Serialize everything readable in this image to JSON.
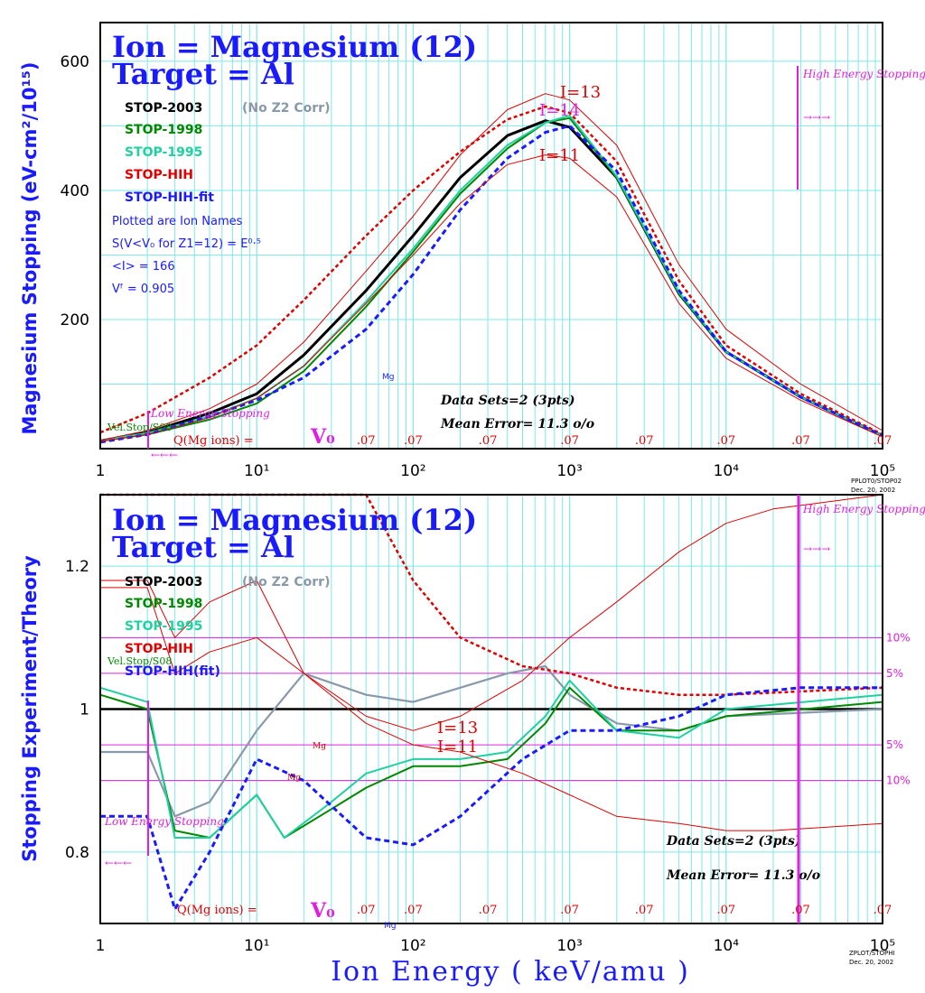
{
  "chart_data": [
    {
      "type": "line",
      "title": "Ion = Magnesium (12)",
      "subtitle": "Target = Al",
      "ylabel": "Magnesium Stopping (eV-cm²/10¹⁵)",
      "xlabel": "Ion Energy ( keV/amu )",
      "xscale": "log",
      "xlim": [
        1,
        100000
      ],
      "ylim": [
        0,
        660
      ],
      "yticks": [
        200,
        400,
        600
      ],
      "xtick_labels": [
        "1",
        "10¹",
        "10²",
        "10³",
        "10⁴",
        "10⁵"
      ],
      "legend": [
        {
          "label": "STOP-2003",
          "note": "(No Z2 Corr)",
          "color": "#000000"
        },
        {
          "label": "STOP-1998",
          "color": "#008800"
        },
        {
          "label": "STOP-1995",
          "color": "#20d0a0"
        },
        {
          "label": "STOP-HIH",
          "color": "#e00000"
        },
        {
          "label": "STOP-HIH-fit",
          "color": "#1a1aff"
        }
      ],
      "info": [
        "Plotted are Ion Names",
        "S(V<V₀ for Z1=12) = E⁰·⁵",
        "<I> = 166",
        "Vᶠ = 0.905"
      ],
      "annotations": [
        "I=13",
        "I=11",
        "I=14",
        "Mg",
        "Data Sets=2 (3pts)",
        "Mean Error= 11.3 o/o",
        "High Energy Stopping",
        "→→→",
        "Low Energy Stopping",
        "←←←",
        "Vel.Stop/S08",
        "Q(Mg ions) =",
        "V₀",
        ".07",
        "PPLOT0/STOP02",
        "Dec. 20, 2002"
      ],
      "series": [
        {
          "name": "STOP-2003",
          "x": [
            1,
            2,
            5,
            10,
            20,
            50,
            100,
            200,
            400,
            700,
            1000,
            2000,
            5000,
            10000,
            30000,
            100000
          ],
          "y": [
            12,
            25,
            55,
            85,
            145,
            245,
            330,
            420,
            485,
            508,
            498,
            420,
            240,
            150,
            80,
            20
          ]
        },
        {
          "name": "STOP-1998",
          "x": [
            1,
            2,
            5,
            10,
            20,
            50,
            100,
            200,
            400,
            700,
            1000,
            2000,
            5000,
            10000,
            30000,
            100000
          ],
          "y": [
            12,
            22,
            45,
            70,
            120,
            220,
            305,
            395,
            465,
            505,
            512,
            420,
            240,
            150,
            80,
            20
          ]
        },
        {
          "name": "STOP-1995",
          "x": [
            1,
            2,
            5,
            10,
            20,
            50,
            100,
            200,
            400,
            700,
            1000,
            2000,
            5000,
            10000,
            30000,
            100000
          ],
          "y": [
            13,
            24,
            50,
            78,
            128,
            228,
            310,
            400,
            470,
            505,
            516,
            422,
            242,
            150,
            80,
            20
          ]
        },
        {
          "name": "STOP-HIH",
          "x": [
            1,
            2,
            5,
            10,
            20,
            50,
            100,
            200,
            400,
            700,
            1000,
            2000,
            5000,
            10000,
            30000,
            100000
          ],
          "y": [
            25,
            55,
            110,
            160,
            230,
            330,
            400,
            460,
            510,
            530,
            520,
            445,
            260,
            160,
            85,
            22
          ]
        },
        {
          "name": "STOP-HIH-fit",
          "x": [
            1,
            2,
            5,
            10,
            20,
            50,
            100,
            200,
            400,
            700,
            1000,
            2000,
            5000,
            10000,
            30000,
            100000
          ],
          "y": [
            10,
            22,
            50,
            75,
            110,
            185,
            270,
            370,
            450,
            490,
            500,
            430,
            245,
            150,
            80,
            20
          ]
        },
        {
          "name": "I=13",
          "x": [
            1,
            2,
            5,
            10,
            20,
            50,
            100,
            200,
            400,
            700,
            1000,
            2000,
            5000,
            10000,
            30000,
            100000
          ],
          "y": [
            13,
            28,
            62,
            100,
            165,
            275,
            360,
            455,
            525,
            550,
            540,
            470,
            285,
            185,
            100,
            28
          ]
        },
        {
          "name": "I=11",
          "x": [
            1,
            2,
            5,
            10,
            20,
            50,
            100,
            200,
            400,
            700,
            1000,
            2000,
            5000,
            10000,
            30000,
            100000
          ],
          "y": [
            11,
            22,
            48,
            78,
            128,
            225,
            300,
            380,
            440,
            455,
            450,
            390,
            225,
            140,
            75,
            18
          ]
        }
      ]
    },
    {
      "type": "line",
      "title": "Ion = Magnesium (12)",
      "subtitle": "Target = Al",
      "ylabel": "Stopping Experiment/Theory",
      "xlabel": "Ion Energy ( keV/amu )",
      "xscale": "log",
      "xlim": [
        1,
        100000
      ],
      "ylim": [
        0.7,
        1.3
      ],
      "yticks": [
        0.8,
        1.0,
        1.2
      ],
      "xtick_labels": [
        "1",
        "10¹",
        "10²",
        "10³",
        "10⁴",
        "10⁵"
      ],
      "legend": [
        {
          "label": "STOP-2003",
          "note": "(No Z2 Corr)",
          "color": "#000000"
        },
        {
          "label": "STOP-1998",
          "color": "#008800"
        },
        {
          "label": "STOP-1995",
          "color": "#20d0a0"
        },
        {
          "label": "STOP-HIH",
          "color": "#e00000"
        },
        {
          "label": "STOP-HIH(fit)",
          "color": "#1a1aff"
        }
      ],
      "reference_lines": [
        {
          "y": 1.1,
          "label": "10%"
        },
        {
          "y": 1.05,
          "label": "5%"
        },
        {
          "y": 0.95,
          "label": "5%"
        },
        {
          "y": 0.9,
          "label": "10%"
        }
      ],
      "annotations": [
        "I=13",
        "I=11",
        "Mg",
        "Data Sets=2 (3pts)",
        "Mean Error= 11.3 o/o",
        "High Energy Stopping",
        "→→→",
        "Low Energy Stopping",
        "←←←",
        "Vel.Stop/S08",
        "Q(Mg ions) =",
        "V₀",
        ".07",
        "ZPLOT/STOPHI",
        "Dec. 20, 2002"
      ],
      "series": [
        {
          "name": "STOP-2003 (No Z2 Corr)",
          "x": [
            1,
            2,
            3,
            5,
            10,
            20,
            50,
            100,
            200,
            400,
            700,
            1000,
            2000,
            5000,
            10000,
            100000
          ],
          "y": [
            0.94,
            0.94,
            0.85,
            0.87,
            0.97,
            1.05,
            1.02,
            1.01,
            1.03,
            1.05,
            1.06,
            1.02,
            0.98,
            0.97,
            0.99,
            1.0
          ]
        },
        {
          "name": "STOP-1998",
          "x": [
            1,
            2,
            3,
            5,
            10,
            15,
            30,
            50,
            100,
            200,
            400,
            700,
            1000,
            2000,
            5000,
            10000,
            100000
          ],
          "y": [
            1.02,
            1.0,
            0.83,
            0.82,
            0.88,
            0.82,
            0.86,
            0.89,
            0.92,
            0.92,
            0.93,
            0.98,
            1.03,
            0.97,
            0.97,
            0.99,
            1.01
          ]
        },
        {
          "name": "STOP-1995",
          "x": [
            1,
            2,
            3,
            5,
            10,
            15,
            30,
            50,
            100,
            200,
            400,
            700,
            1000,
            2000,
            5000,
            10000,
            100000
          ],
          "y": [
            1.03,
            1.01,
            0.82,
            0.82,
            0.88,
            0.82,
            0.87,
            0.91,
            0.93,
            0.93,
            0.94,
            0.99,
            1.04,
            0.97,
            0.96,
            1.0,
            1.02
          ]
        },
        {
          "name": "STOP-HIH",
          "x": [
            1,
            5,
            10,
            20,
            30,
            50,
            100,
            200,
            500,
            1000,
            2000,
            5000,
            10000,
            100000
          ],
          "y": [
            1.3,
            1.3,
            1.3,
            1.3,
            1.3,
            1.3,
            1.18,
            1.1,
            1.06,
            1.05,
            1.03,
            1.02,
            1.02,
            1.03
          ]
        },
        {
          "name": "STOP-HIH(fit)",
          "x": [
            1,
            2,
            3,
            5,
            10,
            20,
            50,
            100,
            200,
            500,
            1000,
            2000,
            5000,
            10000,
            30000,
            100000
          ],
          "y": [
            0.85,
            0.85,
            0.72,
            0.8,
            0.93,
            0.9,
            0.82,
            0.81,
            0.85,
            0.93,
            0.97,
            0.97,
            0.99,
            1.02,
            1.03,
            1.03
          ]
        },
        {
          "name": "I=13",
          "x": [
            1,
            2,
            3,
            5,
            10,
            20,
            50,
            100,
            200,
            500,
            1000,
            2000,
            5000,
            10000,
            20000,
            100000
          ],
          "y": [
            1.17,
            1.17,
            1.05,
            1.08,
            1.1,
            1.05,
            0.99,
            0.97,
            0.99,
            1.04,
            1.1,
            1.15,
            1.22,
            1.26,
            1.28,
            1.3
          ]
        },
        {
          "name": "I=11",
          "x": [
            1,
            2,
            3,
            5,
            10,
            20,
            50,
            100,
            200,
            500,
            1000,
            2000,
            5000,
            10000,
            20000,
            100000
          ],
          "y": [
            1.18,
            1.18,
            1.1,
            1.15,
            1.18,
            1.05,
            0.98,
            0.95,
            0.94,
            0.91,
            0.88,
            0.85,
            0.84,
            0.83,
            0.83,
            0.84
          ]
        }
      ]
    }
  ]
}
